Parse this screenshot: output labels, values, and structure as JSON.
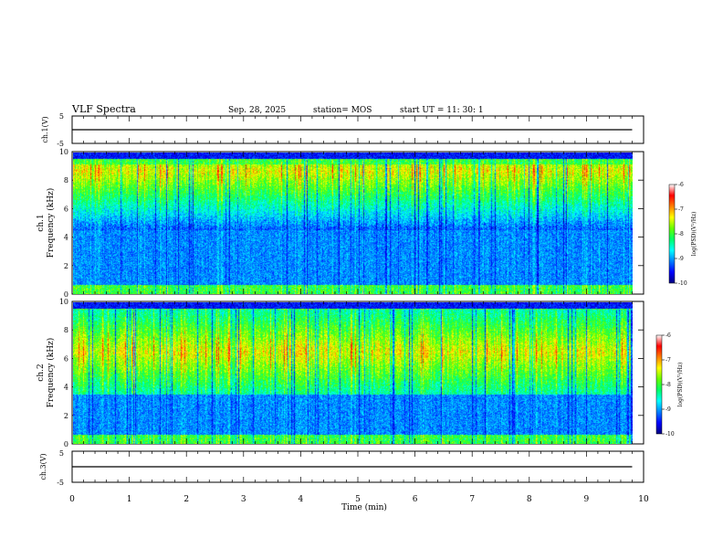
{
  "header": {
    "title": "VLF Spectra",
    "date": "Sep. 28, 2025",
    "station": "station= MOS",
    "start": "start  UT =   11: 30: 1"
  },
  "colors": {
    "colormap": [
      "#000000",
      "#00007f",
      "#0000ff",
      "#0080ff",
      "#00ffff",
      "#00ff66",
      "#66ff00",
      "#ffff00",
      "#ff8000",
      "#ff0000",
      "#ffffff"
    ]
  },
  "chart_data": [
    {
      "id": "ch1-voltage",
      "type": "line",
      "ylabel": "ch.1(V)",
      "ylim": [
        -5,
        5
      ],
      "yticks": [
        "5",
        "-5"
      ],
      "x": [
        0,
        9.8
      ],
      "values": [
        0,
        0
      ]
    },
    {
      "id": "ch1-spectrogram",
      "type": "heatmap",
      "ylabel_top": "ch.1",
      "ylabel": "Frequency (kHz)",
      "ylim": [
        0,
        10
      ],
      "yticks": [
        "0",
        "2",
        "4",
        "6",
        "8",
        "10"
      ],
      "xlim": [
        0,
        9.8
      ],
      "band_low_khz": 4.5,
      "band_high_khz": 9.2,
      "band_peak_khz": 8.7,
      "colorbar": {
        "label": "log(PSD)(V²/Hz)",
        "range": [
          -10,
          -6
        ],
        "ticks": [
          "-6",
          "-7",
          "-8",
          "-9",
          "-10"
        ]
      }
    },
    {
      "id": "ch2-spectrogram",
      "type": "heatmap",
      "ylabel_top": "ch.2",
      "ylabel": "Frequency (kHz)",
      "ylim": [
        0,
        10
      ],
      "yticks": [
        "0",
        "2",
        "4",
        "6",
        "8",
        "10"
      ],
      "xlim": [
        0,
        9.8
      ],
      "band_low_khz": 3.5,
      "band_high_khz": 9.5,
      "band_peak_khz": 6.5,
      "colorbar": {
        "label": "log(PSD)(V²/Hz)",
        "range": [
          -10,
          -6
        ],
        "ticks": [
          "-6",
          "-7",
          "-8",
          "-9",
          "-10"
        ]
      }
    },
    {
      "id": "ch3-voltage",
      "type": "line",
      "ylabel": "ch.3(V)",
      "ylim": [
        -5,
        5
      ],
      "yticks": [
        "5",
        "-5"
      ],
      "x": [
        0,
        9.8
      ],
      "values": [
        0,
        0
      ]
    }
  ],
  "xaxis": {
    "label": "Time (min)",
    "xlim": [
      0,
      10
    ],
    "ticks": [
      "0",
      "1",
      "2",
      "3",
      "4",
      "5",
      "6",
      "7",
      "8",
      "9",
      "10"
    ]
  }
}
